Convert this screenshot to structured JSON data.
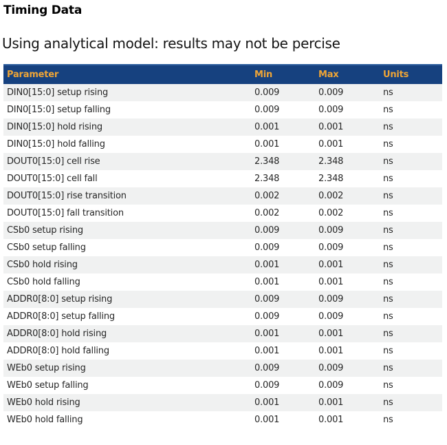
{
  "page": {
    "title": "Timing Data",
    "warning": "Using analytical model: results may not be percise"
  },
  "colors": {
    "header_bg": "#16417f",
    "header_top_edge": "#2e5f9e",
    "header_text": "#efa536",
    "row_alt_bg": "#f0f1f1",
    "row_text": "#262626"
  },
  "table": {
    "columns": [
      "Parameter",
      "Min",
      "Max",
      "Units"
    ],
    "rows": [
      {
        "parameter": "DIN0[15:0] setup rising",
        "min": "0.009",
        "max": "0.009",
        "units": "ns"
      },
      {
        "parameter": "DIN0[15:0] setup falling",
        "min": "0.009",
        "max": "0.009",
        "units": "ns"
      },
      {
        "parameter": "DIN0[15:0] hold rising",
        "min": "0.001",
        "max": "0.001",
        "units": "ns"
      },
      {
        "parameter": "DIN0[15:0] hold falling",
        "min": "0.001",
        "max": "0.001",
        "units": "ns"
      },
      {
        "parameter": "DOUT0[15:0] cell rise",
        "min": "2.348",
        "max": "2.348",
        "units": "ns"
      },
      {
        "parameter": "DOUT0[15:0] cell fall",
        "min": "2.348",
        "max": "2.348",
        "units": "ns"
      },
      {
        "parameter": "DOUT0[15:0] rise transition",
        "min": "0.002",
        "max": "0.002",
        "units": "ns"
      },
      {
        "parameter": "DOUT0[15:0] fall transition",
        "min": "0.002",
        "max": "0.002",
        "units": "ns"
      },
      {
        "parameter": "CSb0 setup rising",
        "min": "0.009",
        "max": "0.009",
        "units": "ns"
      },
      {
        "parameter": "CSb0 setup falling",
        "min": "0.009",
        "max": "0.009",
        "units": "ns"
      },
      {
        "parameter": "CSb0 hold rising",
        "min": "0.001",
        "max": "0.001",
        "units": "ns"
      },
      {
        "parameter": "CSb0 hold falling",
        "min": "0.001",
        "max": "0.001",
        "units": "ns"
      },
      {
        "parameter": "ADDR0[8:0] setup rising",
        "min": "0.009",
        "max": "0.009",
        "units": "ns"
      },
      {
        "parameter": "ADDR0[8:0] setup falling",
        "min": "0.009",
        "max": "0.009",
        "units": "ns"
      },
      {
        "parameter": "ADDR0[8:0] hold rising",
        "min": "0.001",
        "max": "0.001",
        "units": "ns"
      },
      {
        "parameter": "ADDR0[8:0] hold falling",
        "min": "0.001",
        "max": "0.001",
        "units": "ns"
      },
      {
        "parameter": "WEb0 setup rising",
        "min": "0.009",
        "max": "0.009",
        "units": "ns"
      },
      {
        "parameter": "WEb0 setup falling",
        "min": "0.009",
        "max": "0.009",
        "units": "ns"
      },
      {
        "parameter": "WEb0 hold rising",
        "min": "0.001",
        "max": "0.001",
        "units": "ns"
      },
      {
        "parameter": "WEb0 hold falling",
        "min": "0.001",
        "max": "0.001",
        "units": "ns"
      }
    ]
  }
}
